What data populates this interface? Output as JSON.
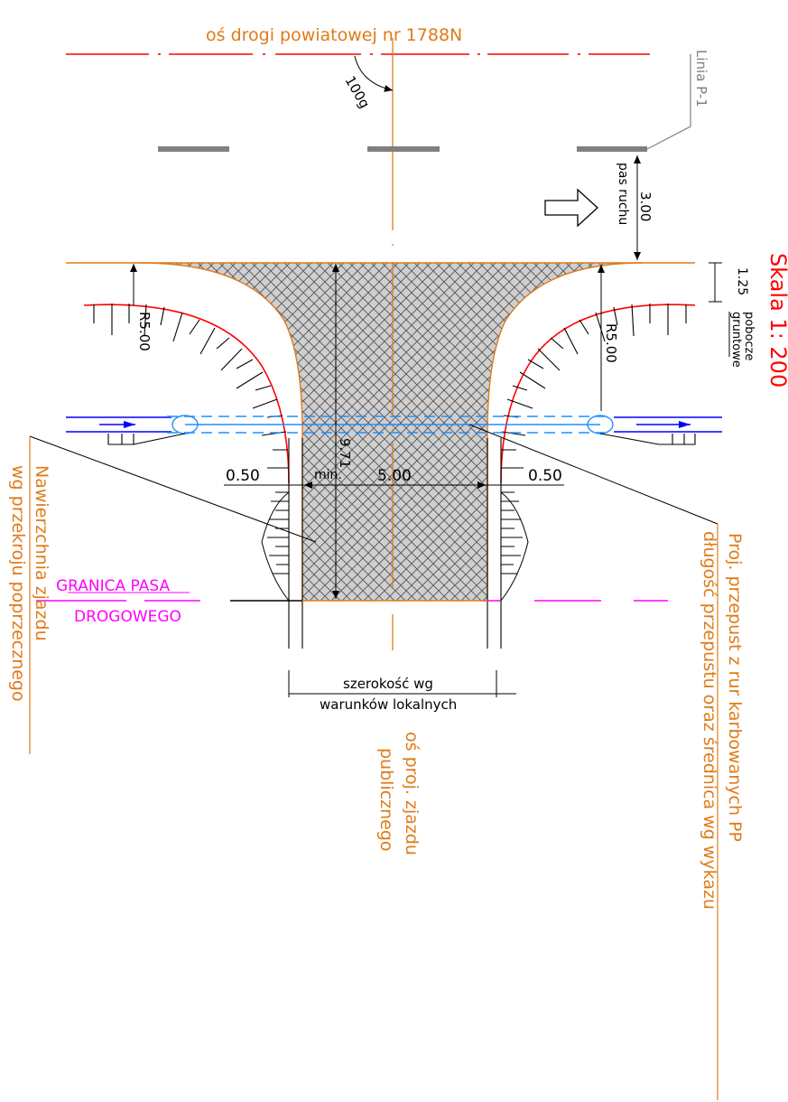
{
  "labels": {
    "road_axis": "oś drogi powiatowej nr 1788N",
    "angle": "100g",
    "line_p1": "Linia P-1",
    "lane": "pas ruchu",
    "lane_width": "3.00",
    "scale": "Skala 1: 200",
    "shoulder_width": "1.25",
    "shoulder_a": "pobocze",
    "shoulder_b": "gruntowe",
    "radius_left": "R5.00",
    "radius_right": "R5.00",
    "length": "9.71",
    "min": "min.",
    "width": "5.00",
    "offset_left": "0.50",
    "offset_right": "0.50",
    "border_a": "GRANICA PASA",
    "border_b": "DROGOWEGO",
    "surface_a": "Nawierzchnia zjazdu",
    "surface_b": "wg przekroju poprzecznego",
    "culvert_a": "Proj. przepust z rur karbowanych PP",
    "culvert_b": "długość przepustu oraz średnica wg wykazu",
    "local_a": "szerokość wg",
    "local_b": "warunków lokalnych",
    "driveway_a": "oś proj. zjazdu",
    "driveway_b": "publicznego"
  },
  "colors": {
    "axis": "#e07b1a",
    "road_axis": "#ff0000",
    "border": "#ff00ff",
    "culvert": "#1f8fff",
    "ditch_arrow": "#0000ff",
    "edge": "#e07b1a",
    "grey": "#808080"
  }
}
